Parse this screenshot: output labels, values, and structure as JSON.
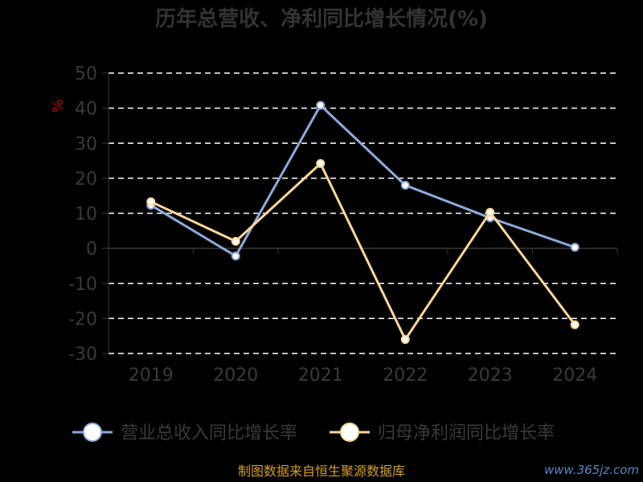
{
  "chart_data": {
    "type": "line",
    "title": "历年总营收、净利同比增长情况(%)",
    "ylabel": "%",
    "categories": [
      "2019",
      "2020",
      "2021",
      "2022",
      "2023",
      "2024"
    ],
    "ylim": [
      -30,
      50
    ],
    "yticks": [
      50,
      40,
      30,
      20,
      10,
      0,
      -10,
      -20,
      -30
    ],
    "grid": true,
    "legend": "bottom",
    "series": [
      {
        "name": "营业总收入同比增长率",
        "color": "#8eaadb",
        "values": [
          12.3,
          -2.2,
          40.8,
          18.0,
          8.7,
          0.3
        ]
      },
      {
        "name": "归母净利润同比增长率",
        "color": "#ffd699",
        "values": [
          13.3,
          2.0,
          24.2,
          -26.0,
          10.3,
          -21.8
        ]
      }
    ]
  },
  "footer": {
    "source": "制图数据来自恒生聚源数据库",
    "watermark": "www.365jz.com"
  }
}
